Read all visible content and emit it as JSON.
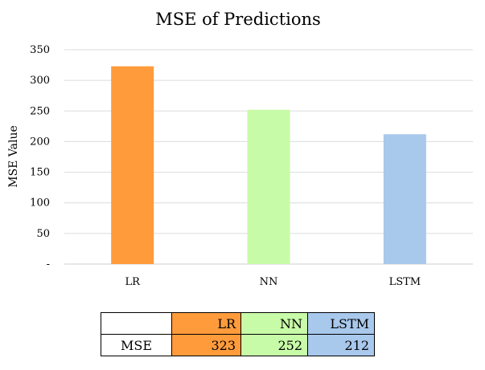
{
  "chart_data": {
    "type": "bar",
    "title": "MSE of Predictions",
    "xlabel": "",
    "ylabel": "MSE Value",
    "categories": [
      "LR",
      "NN",
      "LSTM"
    ],
    "values": [
      323,
      252,
      212
    ],
    "colors": [
      "#ff9b3b",
      "#c8fba8",
      "#a8c8ec"
    ],
    "ylim": [
      0,
      350
    ],
    "yticks": [
      0,
      50,
      100,
      150,
      200,
      250,
      300,
      350
    ],
    "ytick_labels": [
      "-",
      "50",
      "100",
      "150",
      "200",
      "250",
      "300",
      "350"
    ],
    "grid": true,
    "legend": "none"
  },
  "table": {
    "row_label": "MSE",
    "headers": [
      "LR",
      "NN",
      "LSTM"
    ],
    "values": [
      "323",
      "252",
      "212"
    ]
  }
}
